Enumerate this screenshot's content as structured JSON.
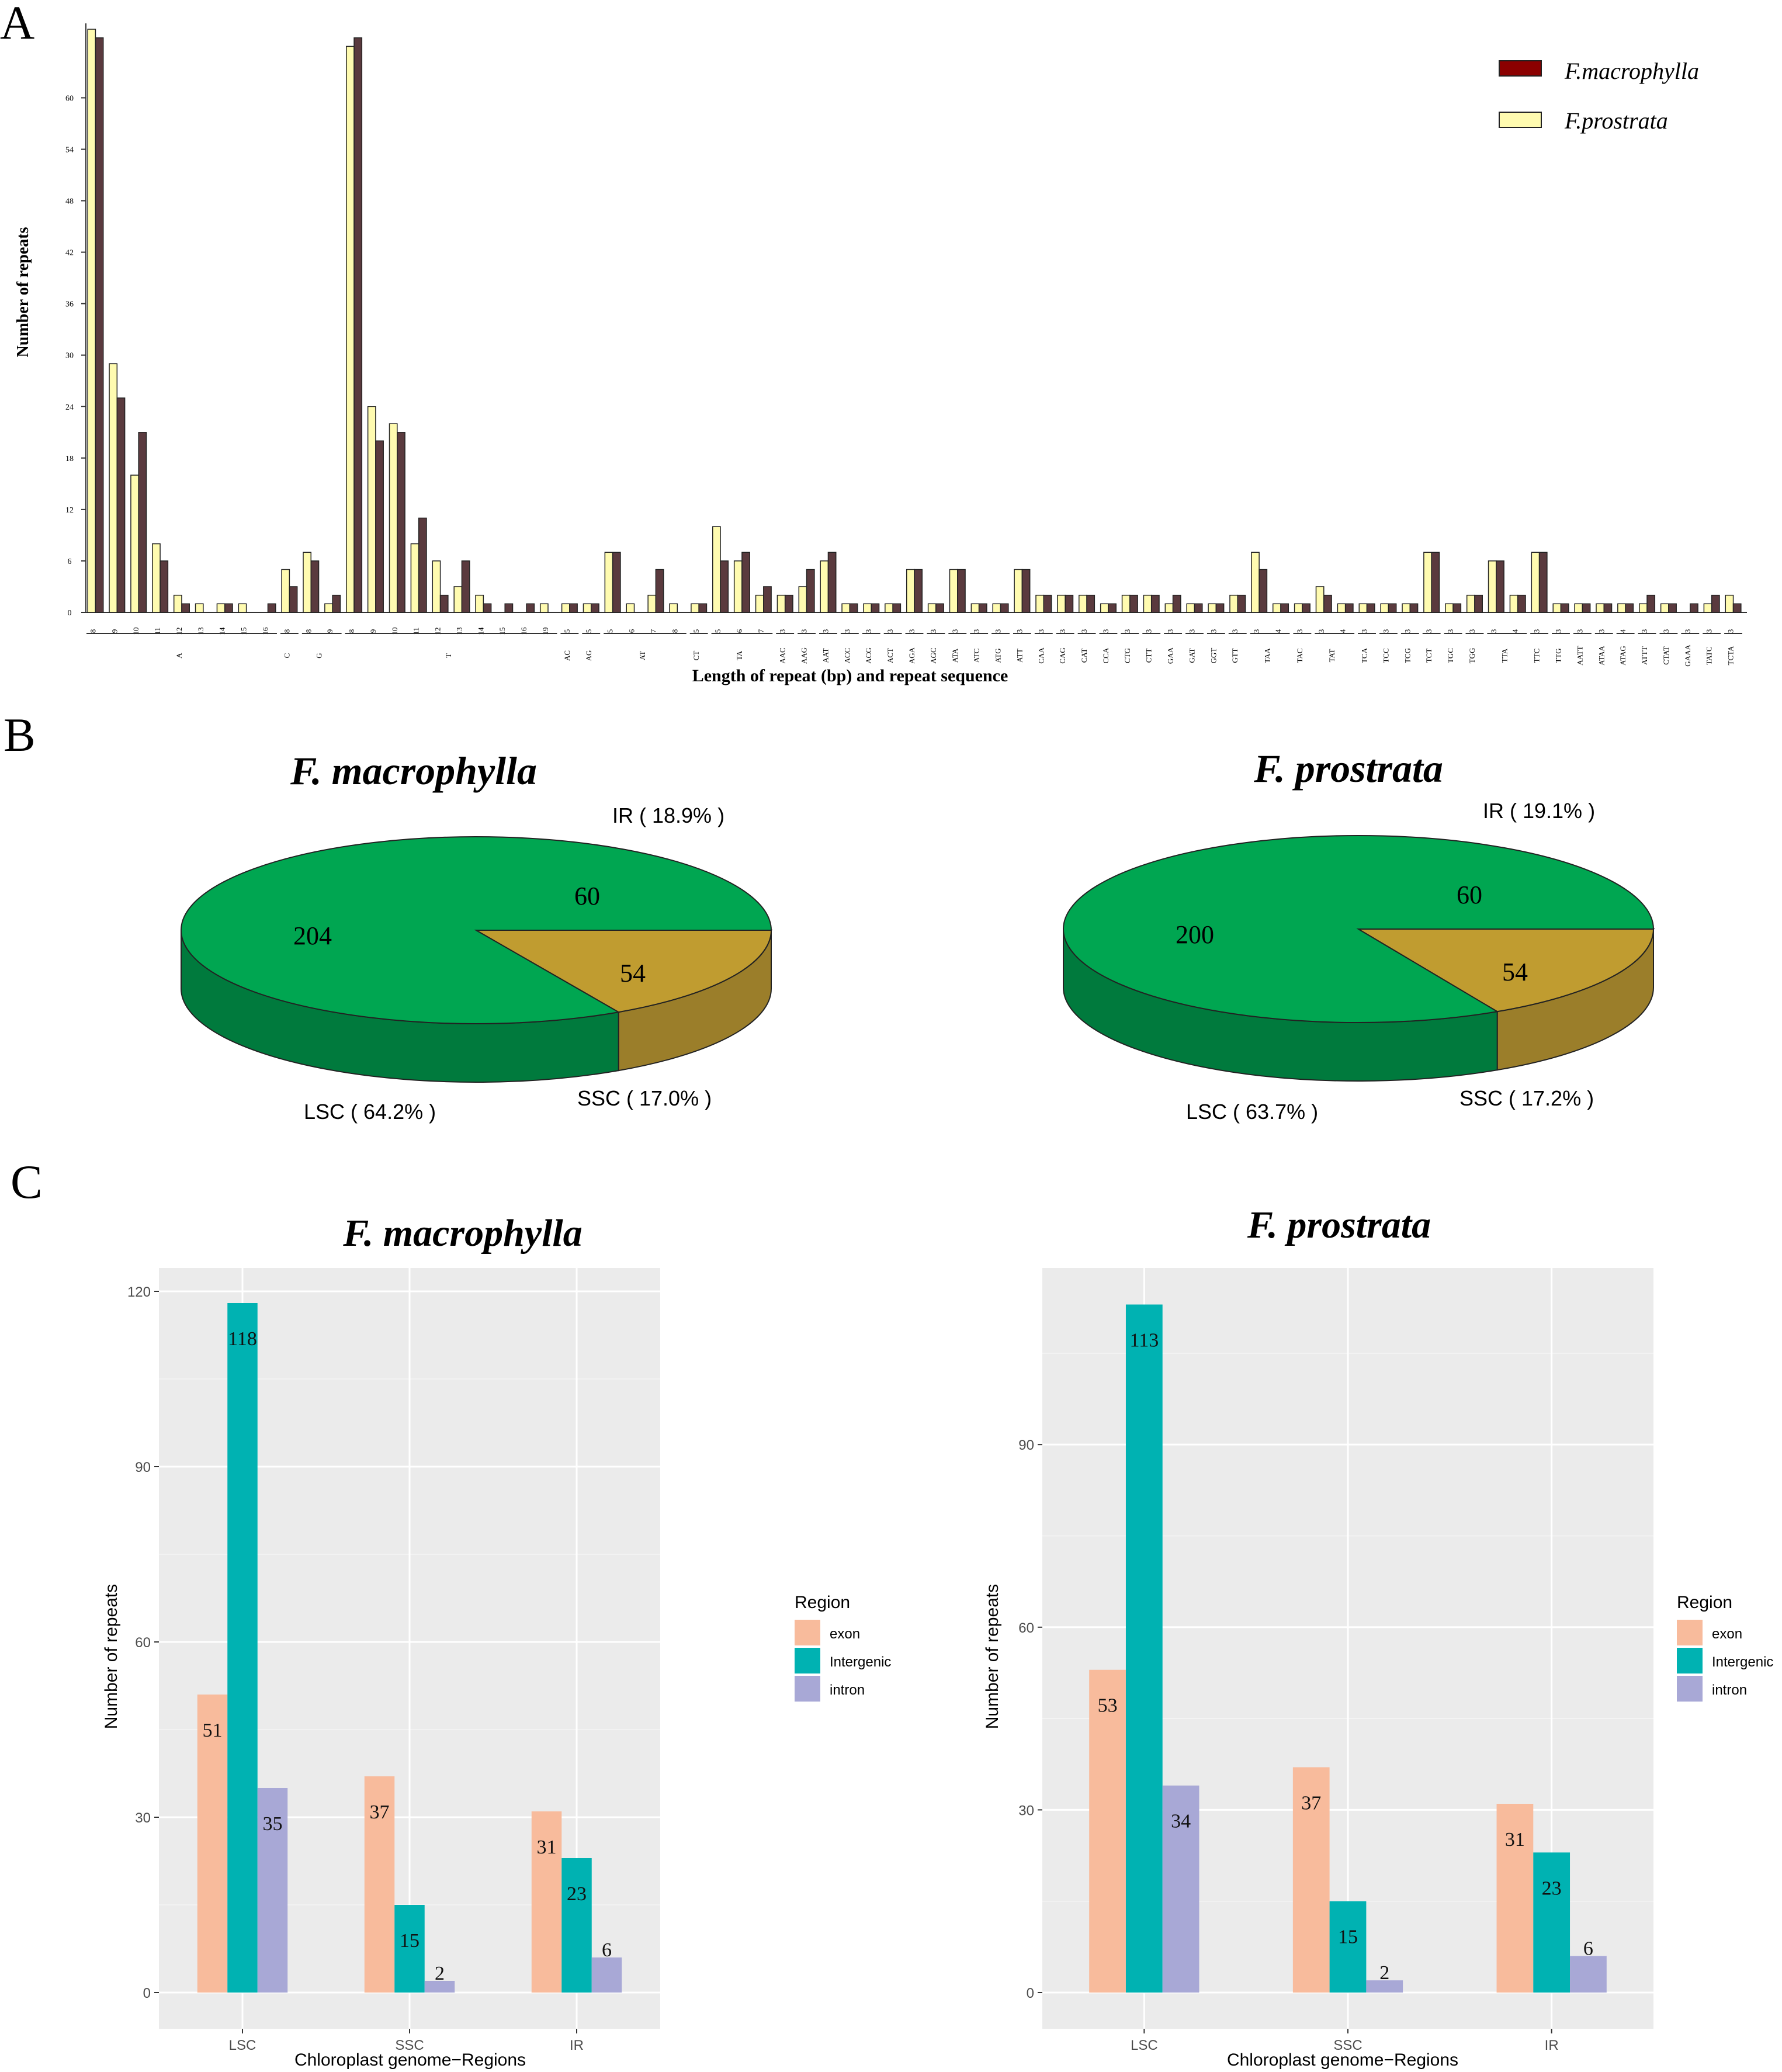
{
  "panel_labels": {
    "a": "A",
    "b": "B",
    "c": "C"
  },
  "colors": {
    "macrophylla_bar": "#5A3A3E",
    "prostrata_bar": "#FFFBB0",
    "legend_macrophylla_swatch": "#8B0000",
    "lsc": "#00A651",
    "lsc_side": "#007A3D",
    "ir": "#00A0DC",
    "ssc": "#C09C30",
    "ssc_side": "#9B7E2A",
    "exon": "#F8BB9C",
    "intergenic": "#00B2B2",
    "intron": "#A8A8D6",
    "ggplot_panel": "#EBEBEB"
  },
  "chart_data": [
    {
      "id": "A",
      "type": "bar",
      "ylabel": "Number of repeats",
      "xlabel": "Length of repeat (bp) and repeat sequence",
      "ylim": [
        0,
        68
      ],
      "yticks": [
        "0",
        "6",
        "12",
        "18",
        "24",
        "30",
        "36",
        "42",
        "48",
        "54",
        "60"
      ],
      "legend": [
        "F.macrophylla",
        "F.prostrata"
      ],
      "groups": [
        {
          "label": "A",
          "ticks": [
            "8",
            "9",
            "10",
            "11",
            "12",
            "13",
            "14",
            "15",
            "16"
          ],
          "prostrata": [
            68,
            29,
            16,
            8,
            2,
            1,
            1,
            1,
            0
          ],
          "macrophylla": [
            67,
            25,
            21,
            6,
            1,
            0,
            1,
            0,
            1
          ]
        },
        {
          "label": "C",
          "ticks": [
            "8"
          ],
          "prostrata": [
            5
          ],
          "macrophylla": [
            3
          ]
        },
        {
          "label": "G",
          "ticks": [
            "8",
            "9"
          ],
          "prostrata": [
            7,
            1
          ],
          "macrophylla": [
            6,
            2
          ]
        },
        {
          "label": "T",
          "ticks": [
            "8",
            "9",
            "10",
            "11",
            "12",
            "13",
            "14",
            "15",
            "16",
            "19"
          ],
          "prostrata": [
            66,
            24,
            22,
            8,
            6,
            3,
            2,
            0,
            0,
            1
          ],
          "macrophylla": [
            67,
            20,
            21,
            11,
            2,
            6,
            1,
            1,
            1,
            0
          ]
        },
        {
          "label": "AC",
          "ticks": [
            "5"
          ],
          "prostrata": [
            1
          ],
          "macrophylla": [
            1
          ]
        },
        {
          "label": "AG",
          "ticks": [
            "5"
          ],
          "prostrata": [
            1
          ],
          "macrophylla": [
            1
          ]
        },
        {
          "label": "AT",
          "ticks": [
            "5",
            "6",
            "7",
            "8"
          ],
          "prostrata": [
            7,
            1,
            2,
            1
          ],
          "macrophylla": [
            7,
            0,
            5,
            0
          ]
        },
        {
          "label": "CT",
          "ticks": [
            "5"
          ],
          "prostrata": [
            1
          ],
          "macrophylla": [
            1
          ]
        },
        {
          "label": "TA",
          "ticks": [
            "5",
            "6",
            "7"
          ],
          "prostrata": [
            10,
            6,
            2
          ],
          "macrophylla": [
            6,
            7,
            3
          ]
        },
        {
          "label": "AAC",
          "ticks": [
            "3"
          ],
          "prostrata": [
            2
          ],
          "macrophylla": [
            2
          ]
        },
        {
          "label": "AAG",
          "ticks": [
            "3"
          ],
          "prostrata": [
            3
          ],
          "macrophylla": [
            5
          ]
        },
        {
          "label": "AAT",
          "ticks": [
            "3"
          ],
          "prostrata": [
            6
          ],
          "macrophylla": [
            7
          ]
        },
        {
          "label": "ACC",
          "ticks": [
            "3"
          ],
          "prostrata": [
            1
          ],
          "macrophylla": [
            1
          ]
        },
        {
          "label": "ACG",
          "ticks": [
            "3"
          ],
          "prostrata": [
            1
          ],
          "macrophylla": [
            1
          ]
        },
        {
          "label": "ACT",
          "ticks": [
            "3"
          ],
          "prostrata": [
            1
          ],
          "macrophylla": [
            1
          ]
        },
        {
          "label": "AGA",
          "ticks": [
            "3"
          ],
          "prostrata": [
            5
          ],
          "macrophylla": [
            5
          ]
        },
        {
          "label": "AGC",
          "ticks": [
            "3"
          ],
          "prostrata": [
            1
          ],
          "macrophylla": [
            1
          ]
        },
        {
          "label": "ATA",
          "ticks": [
            "3"
          ],
          "prostrata": [
            5
          ],
          "macrophylla": [
            5
          ]
        },
        {
          "label": "ATC",
          "ticks": [
            "3"
          ],
          "prostrata": [
            1
          ],
          "macrophylla": [
            1
          ]
        },
        {
          "label": "ATG",
          "ticks": [
            "3"
          ],
          "prostrata": [
            1
          ],
          "macrophylla": [
            1
          ]
        },
        {
          "label": "ATT",
          "ticks": [
            "3"
          ],
          "prostrata": [
            5
          ],
          "macrophylla": [
            5
          ]
        },
        {
          "label": "CAA",
          "ticks": [
            "3"
          ],
          "prostrata": [
            2
          ],
          "macrophylla": [
            2
          ]
        },
        {
          "label": "CAG",
          "ticks": [
            "3"
          ],
          "prostrata": [
            2
          ],
          "macrophylla": [
            2
          ]
        },
        {
          "label": "CAT",
          "ticks": [
            "3"
          ],
          "prostrata": [
            2
          ],
          "macrophylla": [
            2
          ]
        },
        {
          "label": "CCA",
          "ticks": [
            "3"
          ],
          "prostrata": [
            1
          ],
          "macrophylla": [
            1
          ]
        },
        {
          "label": "CTG",
          "ticks": [
            "3"
          ],
          "prostrata": [
            2
          ],
          "macrophylla": [
            2
          ]
        },
        {
          "label": "CTT",
          "ticks": [
            "3"
          ],
          "prostrata": [
            2
          ],
          "macrophylla": [
            2
          ]
        },
        {
          "label": "GAA",
          "ticks": [
            "3"
          ],
          "prostrata": [
            1
          ],
          "macrophylla": [
            2
          ]
        },
        {
          "label": "GAT",
          "ticks": [
            "3"
          ],
          "prostrata": [
            1
          ],
          "macrophylla": [
            1
          ]
        },
        {
          "label": "GGT",
          "ticks": [
            "3"
          ],
          "prostrata": [
            1
          ],
          "macrophylla": [
            1
          ]
        },
        {
          "label": "GTT",
          "ticks": [
            "3"
          ],
          "prostrata": [
            2
          ],
          "macrophylla": [
            2
          ]
        },
        {
          "label": "TAA",
          "ticks": [
            "3",
            "4"
          ],
          "prostrata": [
            7,
            1
          ],
          "macrophylla": [
            5,
            1
          ]
        },
        {
          "label": "TAC",
          "ticks": [
            "3"
          ],
          "prostrata": [
            1
          ],
          "macrophylla": [
            1
          ]
        },
        {
          "label": "TAT",
          "ticks": [
            "3",
            "4"
          ],
          "prostrata": [
            3,
            1
          ],
          "macrophylla": [
            2,
            1
          ]
        },
        {
          "label": "TCA",
          "ticks": [
            "3"
          ],
          "prostrata": [
            1
          ],
          "macrophylla": [
            1
          ]
        },
        {
          "label": "TCC",
          "ticks": [
            "3"
          ],
          "prostrata": [
            1
          ],
          "macrophylla": [
            1
          ]
        },
        {
          "label": "TCG",
          "ticks": [
            "3"
          ],
          "prostrata": [
            1
          ],
          "macrophylla": [
            1
          ]
        },
        {
          "label": "TCT",
          "ticks": [
            "3"
          ],
          "prostrata": [
            7
          ],
          "macrophylla": [
            7
          ]
        },
        {
          "label": "TGC",
          "ticks": [
            "3"
          ],
          "prostrata": [
            1
          ],
          "macrophylla": [
            1
          ]
        },
        {
          "label": "TGG",
          "ticks": [
            "3"
          ],
          "prostrata": [
            2
          ],
          "macrophylla": [
            2
          ]
        },
        {
          "label": "TTA",
          "ticks": [
            "3",
            "4"
          ],
          "prostrata": [
            6,
            2
          ],
          "macrophylla": [
            6,
            2
          ]
        },
        {
          "label": "TTC",
          "ticks": [
            "3"
          ],
          "prostrata": [
            7
          ],
          "macrophylla": [
            7
          ]
        },
        {
          "label": "TTG",
          "ticks": [
            "3"
          ],
          "prostrata": [
            1
          ],
          "macrophylla": [
            1
          ]
        },
        {
          "label": "AATT",
          "ticks": [
            "3"
          ],
          "prostrata": [
            1
          ],
          "macrophylla": [
            1
          ]
        },
        {
          "label": "ATAA",
          "ticks": [
            "3"
          ],
          "prostrata": [
            1
          ],
          "macrophylla": [
            1
          ]
        },
        {
          "label": "ATAG",
          "ticks": [
            "4"
          ],
          "prostrata": [
            1
          ],
          "macrophylla": [
            1
          ]
        },
        {
          "label": "ATTT",
          "ticks": [
            "3"
          ],
          "prostrata": [
            1
          ],
          "macrophylla": [
            2
          ]
        },
        {
          "label": "CTAT",
          "ticks": [
            "3"
          ],
          "prostrata": [
            1
          ],
          "macrophylla": [
            1
          ]
        },
        {
          "label": "GAAA",
          "ticks": [
            "3"
          ],
          "prostrata": [
            0
          ],
          "macrophylla": [
            1
          ]
        },
        {
          "label": "TATC",
          "ticks": [
            "3"
          ],
          "prostrata": [
            1
          ],
          "macrophylla": [
            2
          ]
        },
        {
          "label": "TCTA",
          "ticks": [
            "3"
          ],
          "prostrata": [
            2
          ],
          "macrophylla": [
            1
          ]
        }
      ]
    },
    {
      "id": "B1",
      "type": "pie",
      "title": "F. macrophylla",
      "slices": [
        {
          "name": "LSC",
          "value": 204,
          "label": "LSC ( 64.2% )"
        },
        {
          "name": "IR",
          "value": 60,
          "label": "IR ( 18.9% )"
        },
        {
          "name": "SSC",
          "value": 54,
          "label": "SSC ( 17.0% )"
        }
      ]
    },
    {
      "id": "B2",
      "type": "pie",
      "title": "F. prostrata",
      "slices": [
        {
          "name": "LSC",
          "value": 200,
          "label": "LSC ( 63.7% )"
        },
        {
          "name": "IR",
          "value": 60,
          "label": "IR ( 19.1% )"
        },
        {
          "name": "SSC",
          "value": 54,
          "label": "SSC ( 17.2% )"
        }
      ]
    },
    {
      "id": "C1",
      "type": "bar",
      "title": "F. macrophylla",
      "xlabel": "Chloroplast genome−Regions",
      "ylabel": "Number of repeats",
      "ylim": [
        0,
        124
      ],
      "yticks": [
        0,
        30,
        60,
        90,
        120
      ],
      "categories": [
        "LSC",
        "SSC",
        "IR"
      ],
      "legend_title": "Region",
      "series": [
        {
          "name": "exon",
          "values": [
            51,
            37,
            31
          ]
        },
        {
          "name": "Intergenic",
          "values": [
            118,
            15,
            23
          ]
        },
        {
          "name": "intron",
          "values": [
            35,
            2,
            6
          ]
        }
      ]
    },
    {
      "id": "C2",
      "type": "bar",
      "title": "F. prostrata",
      "xlabel": "Chloroplast genome−Regions",
      "ylabel": "Number of repeats",
      "ylim": [
        0,
        119
      ],
      "yticks": [
        0,
        30,
        60,
        90
      ],
      "categories": [
        "LSC",
        "SSC",
        "IR"
      ],
      "legend_title": "Region",
      "series": [
        {
          "name": "exon",
          "values": [
            53,
            37,
            31
          ]
        },
        {
          "name": "Intergenic",
          "values": [
            113,
            15,
            23
          ]
        },
        {
          "name": "intron",
          "values": [
            34,
            2,
            6
          ]
        }
      ]
    }
  ]
}
